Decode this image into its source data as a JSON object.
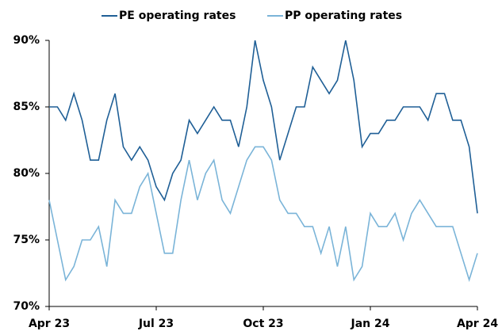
{
  "chart_data": {
    "type": "line",
    "categories": [
      "Apr 23",
      null,
      null,
      null,
      null,
      null,
      null,
      null,
      null,
      null,
      null,
      null,
      null,
      "Jul 23",
      null,
      null,
      null,
      null,
      null,
      null,
      null,
      null,
      null,
      null,
      null,
      null,
      "Oct 23",
      null,
      null,
      null,
      null,
      null,
      null,
      null,
      null,
      null,
      null,
      null,
      null,
      "Jan 24",
      null,
      null,
      null,
      null,
      null,
      null,
      null,
      null,
      null,
      null,
      null,
      null,
      "Apr 24"
    ],
    "series": [
      {
        "name": "PE operating rates",
        "color": "#1f5f96",
        "values": [
          85,
          85,
          84,
          86,
          84,
          81,
          81,
          84,
          86,
          82,
          81,
          82,
          81,
          79,
          78,
          80,
          81,
          84,
          83,
          84,
          85,
          84,
          84,
          82,
          85,
          90,
          87,
          85,
          81,
          83,
          85,
          85,
          88,
          87,
          86,
          87,
          90,
          87,
          82,
          83,
          83,
          84,
          84,
          85,
          85,
          85,
          84,
          86,
          86,
          84,
          84,
          82,
          77
        ]
      },
      {
        "name": "PP operating rates",
        "color": "#7ab4d8",
        "values": [
          78,
          75,
          72,
          73,
          75,
          75,
          76,
          73,
          78,
          77,
          77,
          79,
          80,
          77,
          74,
          74,
          78,
          81,
          78,
          80,
          81,
          78,
          77,
          79,
          81,
          82,
          82,
          81,
          78,
          77,
          77,
          76,
          76,
          74,
          76,
          73,
          76,
          72,
          73,
          77,
          76,
          76,
          77,
          75,
          77,
          78,
          77,
          76,
          76,
          76,
          74,
          72,
          74
        ]
      }
    ],
    "ylim": [
      70,
      90
    ],
    "yticks": [
      {
        "value": 70,
        "label": "70%"
      },
      {
        "value": 75,
        "label": "75%"
      },
      {
        "value": 80,
        "label": "80%"
      },
      {
        "value": 85,
        "label": "85%"
      },
      {
        "value": 90,
        "label": "90%"
      }
    ],
    "legend": "top",
    "grid": false
  }
}
